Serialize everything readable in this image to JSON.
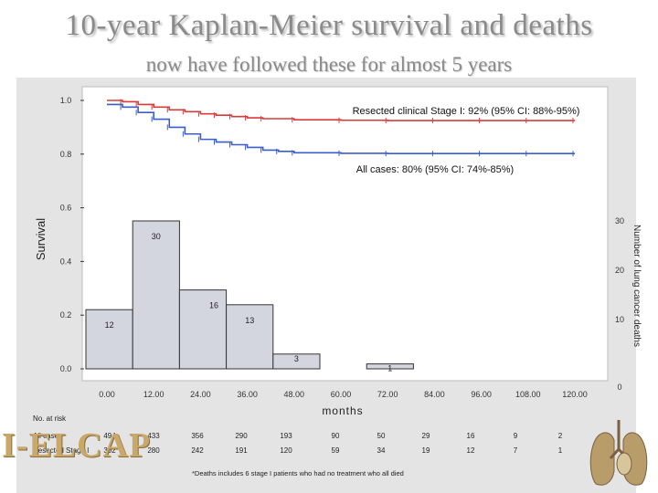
{
  "title": "10-year Kaplan-Meier survival and deaths",
  "subtitle": "now have followed these for almost 5 years",
  "logo_text": "I-ELCAP",
  "footnote": "*Deaths includes 6 stage I patients who had no treatment who all died",
  "risk_table": {
    "heading": "No. at risk",
    "rows": [
      {
        "label": "All cases",
        "values": [
          "494",
          "433",
          "356",
          "290",
          "193",
          "90",
          "50",
          "29",
          "16",
          "9",
          "2"
        ]
      },
      {
        "label": "Resected Stage I",
        "values": [
          "302",
          "280",
          "242",
          "191",
          "120",
          "59",
          "34",
          "19",
          "12",
          "7",
          "1"
        ]
      }
    ]
  },
  "chart_data": {
    "type": "line",
    "xlabel": "months",
    "ylabel": "Survival",
    "y2label": "Number of lung cancer deaths",
    "x_ticks": [
      "0.00",
      "12.00",
      "24.00",
      "36.00",
      "48.00",
      "60.00",
      "72.00",
      "84.00",
      "96.00",
      "108.00",
      "120.00"
    ],
    "y_ticks": [
      "0.0",
      "0.2",
      "0.4",
      "0.6",
      "0.8",
      "1.0"
    ],
    "y2_ticks": [
      "0",
      "10",
      "20",
      "30"
    ],
    "xlim": [
      0,
      126
    ],
    "ylim": [
      0,
      1.0
    ],
    "y2lim": [
      0,
      30
    ],
    "series": [
      {
        "name": "Resected clinical Stage I: 92% (95% CI: 88%-95%)",
        "color": "#d93a3a",
        "x": [
          0,
          4,
          8,
          12,
          16,
          20,
          24,
          28,
          32,
          36,
          40,
          48,
          60,
          72,
          84,
          96,
          108,
          120
        ],
        "y": [
          1.0,
          0.995,
          0.985,
          0.975,
          0.965,
          0.958,
          0.95,
          0.945,
          0.94,
          0.935,
          0.932,
          0.928,
          0.926,
          0.925,
          0.925,
          0.925,
          0.925,
          0.925
        ]
      },
      {
        "name": "All cases: 80% (95% CI: 74%-85%)",
        "color": "#3a5fc8",
        "x": [
          0,
          4,
          8,
          12,
          16,
          20,
          24,
          28,
          32,
          36,
          40,
          44,
          48,
          60,
          72,
          84,
          96,
          108,
          120
        ],
        "y": [
          0.985,
          0.975,
          0.955,
          0.93,
          0.9,
          0.875,
          0.855,
          0.845,
          0.835,
          0.825,
          0.815,
          0.81,
          0.805,
          0.803,
          0.802,
          0.802,
          0.802,
          0.802,
          0.802
        ]
      }
    ],
    "bars": {
      "name": "Number of lung cancer deaths",
      "color": "#d3d6de",
      "intervals": [
        [
          0,
          12
        ],
        [
          12,
          24
        ],
        [
          24,
          36
        ],
        [
          36,
          48
        ],
        [
          48,
          60
        ],
        [
          60,
          72
        ],
        [
          72,
          84
        ]
      ],
      "values": [
        12,
        30,
        16,
        13,
        3,
        0,
        1
      ],
      "labels": [
        "12",
        "30",
        "16",
        "13",
        "3",
        "",
        "1"
      ]
    }
  }
}
